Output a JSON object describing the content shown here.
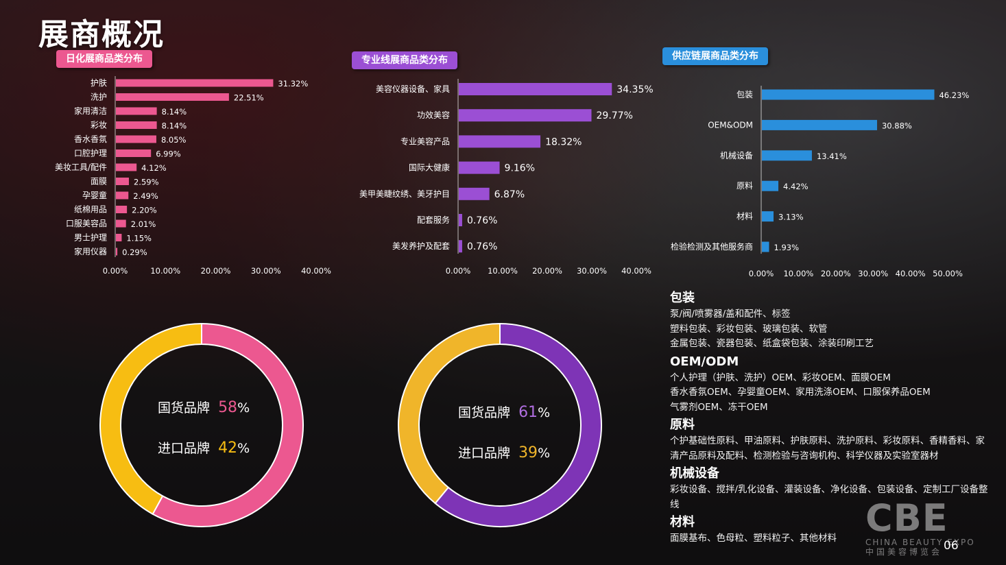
{
  "page": {
    "title": "展商概况",
    "page_number": "06"
  },
  "colors": {
    "pink": "#ec5890",
    "purple": "#9b4fd4",
    "blue": "#2a8fdc",
    "gold": "#f7bd12",
    "deep_purple": "#7e34b6"
  },
  "chart_data": [
    {
      "id": "daily",
      "type": "bar",
      "orientation": "horizontal",
      "title": "日化展商品类分布",
      "categories": [
        "护肤",
        "洗护",
        "家用清洁",
        "彩妆",
        "香水香氛",
        "口腔护理",
        "美妆工具/配件",
        "面膜",
        "孕婴童",
        "纸棉用品",
        "口服美容品",
        "男士护理",
        "家用仪器"
      ],
      "values": [
        31.32,
        22.51,
        8.14,
        8.14,
        8.05,
        6.99,
        4.12,
        2.59,
        2.49,
        2.2,
        2.01,
        1.15,
        0.29
      ],
      "value_labels": [
        "31.32%",
        "22.51%",
        "8.14%",
        "8.14%",
        "8.05%",
        "6.99%",
        "4.12%",
        "2.59%",
        "2.49%",
        "2.20%",
        "2.01%",
        "1.15%",
        "0.29%"
      ],
      "xlim": [
        0,
        40
      ],
      "ticks": [
        "0.00%",
        "10.00%",
        "20.00%",
        "30.00%",
        "40.00%"
      ],
      "color": "#ec5890"
    },
    {
      "id": "pro",
      "type": "bar",
      "orientation": "horizontal",
      "title": "专业线展商品类分布",
      "categories": [
        "美容仪器设备、家具",
        "功效美容",
        "专业美容产品",
        "国际大健康",
        "美甲美睫纹绣、美牙护目",
        "配套服务",
        "美发养护及配套"
      ],
      "values": [
        34.35,
        29.77,
        18.32,
        9.16,
        6.87,
        0.76,
        0.76
      ],
      "value_labels": [
        "34.35%",
        "29.77%",
        "18.32%",
        "9.16%",
        "6.87%",
        "0.76%",
        "0.76%"
      ],
      "xlim": [
        0,
        40
      ],
      "ticks": [
        "0.00%",
        "10.00%",
        "20.00%",
        "30.00%",
        "40.00%"
      ],
      "color": "#9b4fd4"
    },
    {
      "id": "supply",
      "type": "bar",
      "orientation": "horizontal",
      "title": "供应链展商品类分布",
      "categories": [
        "包装",
        "OEM&ODM",
        "机械设备",
        "原料",
        "材料",
        "检验检测及其他服务商"
      ],
      "values": [
        46.23,
        30.88,
        13.41,
        4.42,
        3.13,
        1.93
      ],
      "value_labels": [
        "46.23%",
        "30.88%",
        "13.41%",
        "4.42%",
        "3.13%",
        "1.93%"
      ],
      "xlim": [
        0,
        50
      ],
      "ticks": [
        "0.00%",
        "10.00%",
        "20.00%",
        "30.00%",
        "40.00%",
        "50.00%"
      ],
      "color": "#2a8fdc"
    },
    {
      "id": "brand_daily",
      "type": "pie",
      "donut": true,
      "categories": [
        "国货品牌",
        "进口品牌"
      ],
      "values": [
        58,
        42
      ],
      "colors": [
        "#ec5890",
        "#f7bd12"
      ]
    },
    {
      "id": "brand_pro",
      "type": "pie",
      "donut": true,
      "categories": [
        "国货品牌",
        "进口品牌"
      ],
      "values": [
        61,
        39
      ],
      "colors": [
        "#7e34b6",
        "#f0b52a"
      ]
    }
  ],
  "donuts": {
    "left": {
      "domestic_label": "国货品牌",
      "domestic_value": "58",
      "import_label": "进口品牌",
      "import_value": "42",
      "unit": "%"
    },
    "right": {
      "domestic_label": "国货品牌",
      "domestic_value": "61",
      "import_label": "进口品牌",
      "import_value": "39",
      "unit": "%"
    }
  },
  "supply_details": [
    {
      "title": "包装",
      "lines": [
        "泵/阀/喷雾器/盖和配件、标签",
        "塑料包装、彩妆包装、玻璃包装、软管",
        "金属包装、瓷器包装、纸盒袋包装、涂装印刷工艺"
      ]
    },
    {
      "title": "OEM/ODM",
      "lines": [
        "个人护理（护肤、洗护）OEM、彩妆OEM、面膜OEM",
        "香水香氛OEM、孕婴童OEM、家用洗涤OEM、口服保养品OEM",
        "气雾剂OEM、冻干OEM"
      ]
    },
    {
      "title": "原料",
      "lines": [
        "个护基础性原料、甲油原料、护肤原料、洗护原料、彩妆原料、香精香料、家",
        "清产品原料及配料、检测检验与咨询机构、科学仪器及实验室器材"
      ]
    },
    {
      "title": "机械设备",
      "lines": [
        "彩妆设备、搅拌/乳化设备、灌装设备、净化设备、包装设备、定制工厂设备整",
        "线"
      ]
    },
    {
      "title": "材料",
      "lines": [
        "面膜基布、色母粒、塑料粒子、其他材料"
      ]
    }
  ],
  "logo": {
    "mark": "CBE",
    "english": "CHINA BEAUTY EXPO",
    "chinese": "中国美容博览会"
  }
}
